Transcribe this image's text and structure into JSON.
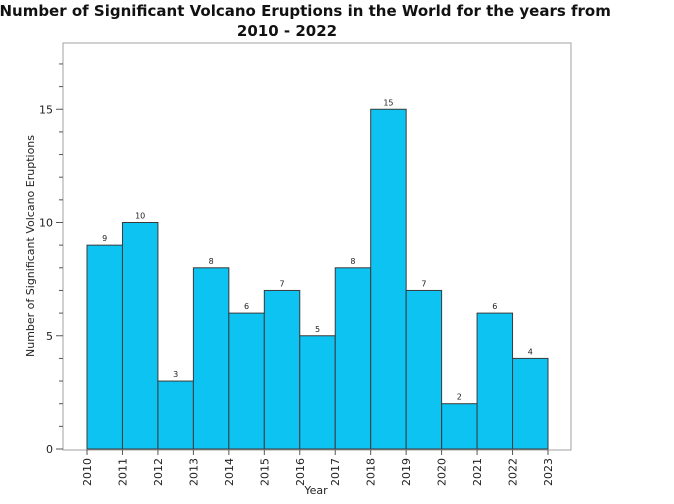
{
  "chart_data": {
    "type": "bar",
    "title": "The Number of Significant Volcano Eruptions in the World for the years from",
    "subtitle": "2010 - 2022",
    "xlabel": "Year",
    "ylabel": "Number of Significant Volcano Eruptions",
    "x_ticks": [
      "2010",
      "2011",
      "2012",
      "2013",
      "2014",
      "2015",
      "2016",
      "2017",
      "2018",
      "2019",
      "2020",
      "2021",
      "2022",
      "2023"
    ],
    "y_ticks": [
      "0",
      "5",
      "10",
      "15"
    ],
    "categories": [
      "2010",
      "2011",
      "2012",
      "2013",
      "2014",
      "2015",
      "2016",
      "2017",
      "2018",
      "2019",
      "2020",
      "2021",
      "2022"
    ],
    "values": [
      9,
      10,
      3,
      8,
      6,
      7,
      5,
      8,
      15,
      7,
      2,
      6,
      4
    ],
    "data_labels": [
      "9",
      "10",
      "3",
      "8",
      "6",
      "7",
      "5",
      "8",
      "15",
      "7",
      "2",
      "6",
      "4"
    ],
    "ylim": [
      0,
      17.5
    ],
    "xlim": [
      2010,
      2023
    ],
    "grid": false,
    "colors": {
      "bar_fill": "#0cc3f2",
      "bar_stroke": "#3a3a3a",
      "axis": "#555555",
      "frame": "#a0a0a0"
    }
  }
}
